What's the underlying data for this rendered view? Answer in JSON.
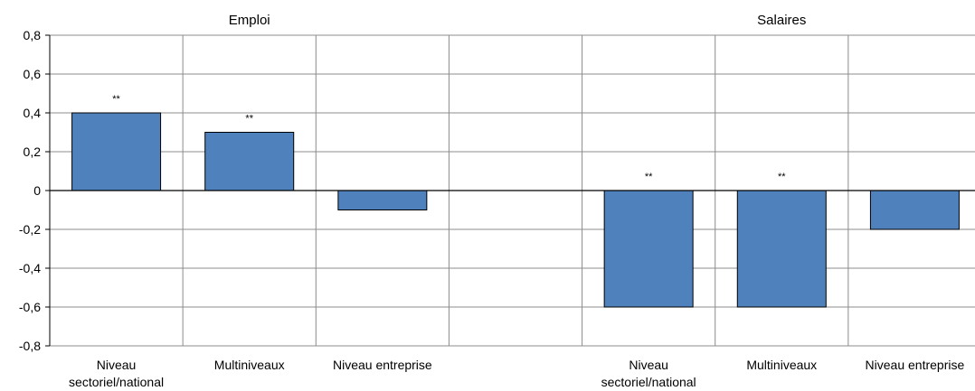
{
  "chart_data": {
    "type": "bar",
    "groups": [
      {
        "title": "Emploi",
        "categories": [
          "Niveau sectoriel/national",
          "Multiniveaux",
          "Niveau entreprise"
        ],
        "category_lines": [
          [
            "Niveau",
            "sectoriel/national"
          ],
          [
            "Multiniveaux"
          ],
          [
            "Niveau entreprise"
          ]
        ],
        "values": [
          0.4,
          0.3,
          -0.1
        ],
        "significance": [
          "**",
          "**",
          ""
        ]
      },
      {
        "title": "Salaires",
        "categories": [
          "Niveau sectoriel/national",
          "Multiniveaux",
          "Niveau entreprise"
        ],
        "category_lines": [
          [
            "Niveau",
            "sectoriel/national"
          ],
          [
            "Multiniveaux"
          ],
          [
            "Niveau entreprise"
          ]
        ],
        "values": [
          -0.6,
          -0.6,
          -0.2
        ],
        "significance": [
          "**",
          "**",
          ""
        ]
      }
    ],
    "yticks": [
      "0,8",
      "0,6",
      "0,4",
      "0,2",
      "0",
      "-0,2",
      "-0,4",
      "-0,6",
      "-0,8"
    ],
    "ylim": [
      -0.8,
      0.8
    ],
    "grid": true,
    "legend": "none",
    "bar_color": "#4f81bd"
  }
}
